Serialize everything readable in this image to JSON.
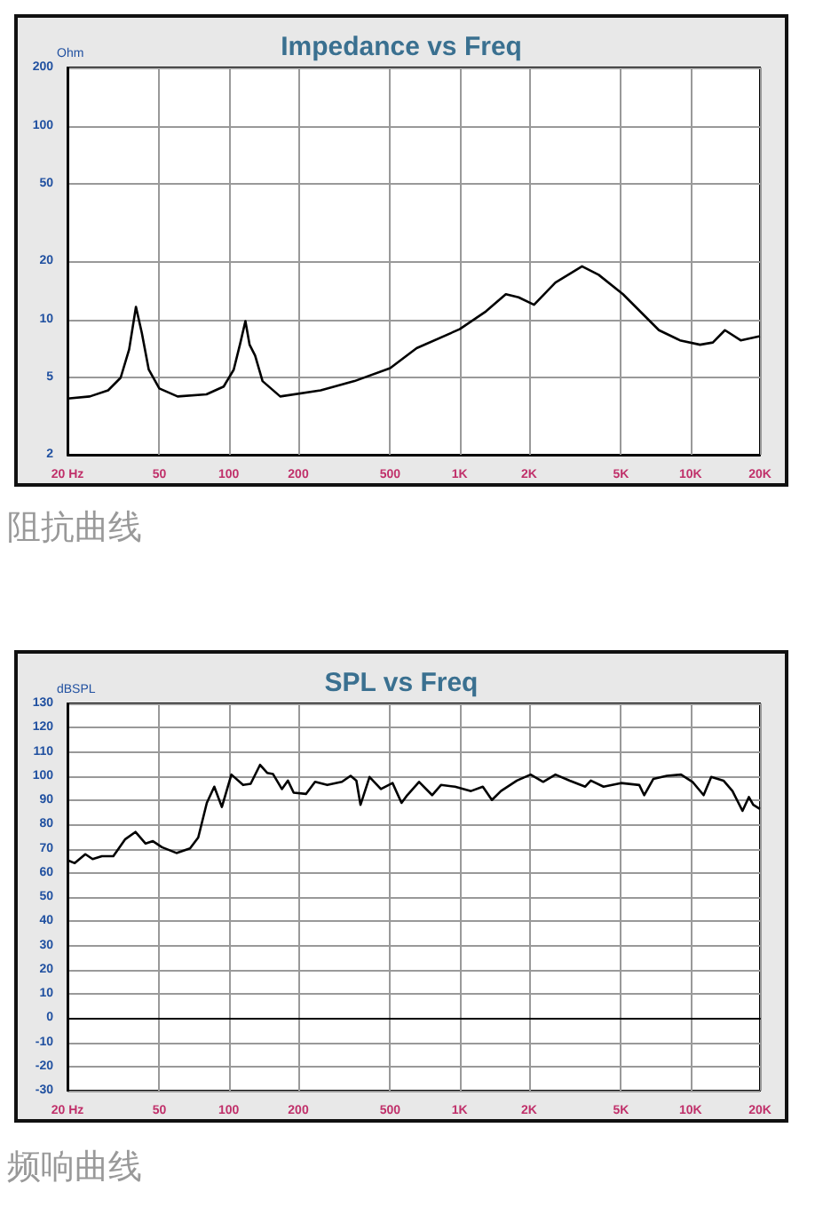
{
  "chart_data": [
    {
      "type": "line",
      "title": "Impedance vs Freq",
      "ylabel": "Ohm",
      "annotations": [
        "阻抗曲线"
      ],
      "log": "xy",
      "grid": true,
      "marker": "none",
      "line_style": "solid",
      "xlim": [
        20,
        20000
      ],
      "xticks": [
        {
          "value": 20,
          "label": "20 Hz"
        },
        50,
        100,
        200,
        500,
        {
          "value": 1000,
          "label": "1K"
        },
        {
          "value": 2000,
          "label": "2K"
        },
        {
          "value": 5000,
          "label": "5K"
        },
        {
          "value": 10000,
          "label": "10K"
        },
        {
          "value": 20000,
          "label": "20K"
        }
      ],
      "ylim": [
        2,
        200
      ],
      "yticks": [
        2,
        5,
        10,
        20,
        50,
        100,
        200
      ],
      "series": [
        {
          "color": "#000000",
          "x": [
            20,
            25,
            30,
            34,
            37,
            39.6,
            42,
            45,
            50,
            60,
            80,
            95,
            105,
            112,
            118,
            123,
            130,
            140,
            167,
            250,
            350,
            500,
            651,
            1000,
            1300,
            1585,
            1800,
            2100,
            2600,
            3390,
            4000,
            5100,
            7300,
            9000,
            11000,
            12500,
            14100,
            16500,
            20000
          ],
          "values": [
            3.9,
            4.0,
            4.3,
            5.0,
            7.0,
            11.6,
            8.5,
            5.5,
            4.4,
            4.0,
            4.1,
            4.5,
            5.5,
            7.5,
            9.8,
            7.4,
            6.5,
            4.8,
            4.0,
            4.3,
            4.8,
            5.6,
            7.1,
            8.9,
            11.0,
            13.5,
            13.0,
            11.9,
            15.5,
            18.8,
            17.0,
            13.5,
            8.8,
            7.8,
            7.4,
            7.6,
            8.8,
            7.8,
            8.2
          ]
        }
      ]
    },
    {
      "type": "line",
      "title": "SPL vs Freq",
      "ylabel": "dBSPL",
      "annotations": [
        "频响曲线"
      ],
      "log": "x",
      "grid": true,
      "marker": "none",
      "line_style": "solid",
      "xlim": [
        20,
        20000
      ],
      "xticks": [
        {
          "value": 20,
          "label": "20 Hz"
        },
        50,
        100,
        200,
        500,
        {
          "value": 1000,
          "label": "1K"
        },
        {
          "value": 2000,
          "label": "2K"
        },
        {
          "value": 5000,
          "label": "5K"
        },
        {
          "value": 10000,
          "label": "10K"
        },
        {
          "value": 20000,
          "label": "20K"
        }
      ],
      "ylim": [
        -30,
        130
      ],
      "yticks": [
        -30,
        -20,
        -10,
        0,
        10,
        20,
        30,
        40,
        50,
        60,
        70,
        80,
        90,
        100,
        110,
        120,
        130
      ],
      "series": [
        {
          "color": "#000000",
          "x": [
            20,
            21.5,
            23.9,
            25.7,
            28.2,
            31.6,
            35.6,
            39.4,
            43.6,
            46.9,
            51.3,
            59.3,
            67.9,
            73.7,
            80.3,
            86.5,
            93.3,
            102.6,
            115.3,
            124.3,
            136.5,
            146.6,
            155.5,
            169.8,
            180.2,
            191,
            215.9,
            236.4,
            267,
            309,
            337,
            357,
            372,
            407,
            456,
            512,
            560,
            593,
            667,
            760,
            830,
            955,
            1120,
            1260,
            1380,
            1510,
            1770,
            2030,
            2300,
            2600,
            3000,
            3500,
            3700,
            4200,
            5000,
            6000,
            6300,
            6900,
            7900,
            9100,
            10200,
            11400,
            12300,
            13900,
            15200,
            16800,
            17900,
            18700,
            20000
          ],
          "values": [
            65.2,
            64,
            67.7,
            65.7,
            66.9,
            66.9,
            73.9,
            76.9,
            72.1,
            73.1,
            70.6,
            68.2,
            70.1,
            74.6,
            88.9,
            95.6,
            87.2,
            100.6,
            96.3,
            96.8,
            104.6,
            101.3,
            100.8,
            94.6,
            98.1,
            93.1,
            92.6,
            97.6,
            96.3,
            97.6,
            100.1,
            98.1,
            88.1,
            99.6,
            94.6,
            97.1,
            88.9,
            92.1,
            97.6,
            92.1,
            96.3,
            95.6,
            93.8,
            95.6,
            90.1,
            93.8,
            98.1,
            100.6,
            97.6,
            100.6,
            98.1,
            95.6,
            98.1,
            95.6,
            97.1,
            96.3,
            92.1,
            98.8,
            100.1,
            100.6,
            97.6,
            92.1,
            99.6,
            98.1,
            93.8,
            85.6,
            91.3,
            88.1,
            86.4
          ]
        }
      ]
    }
  ]
}
